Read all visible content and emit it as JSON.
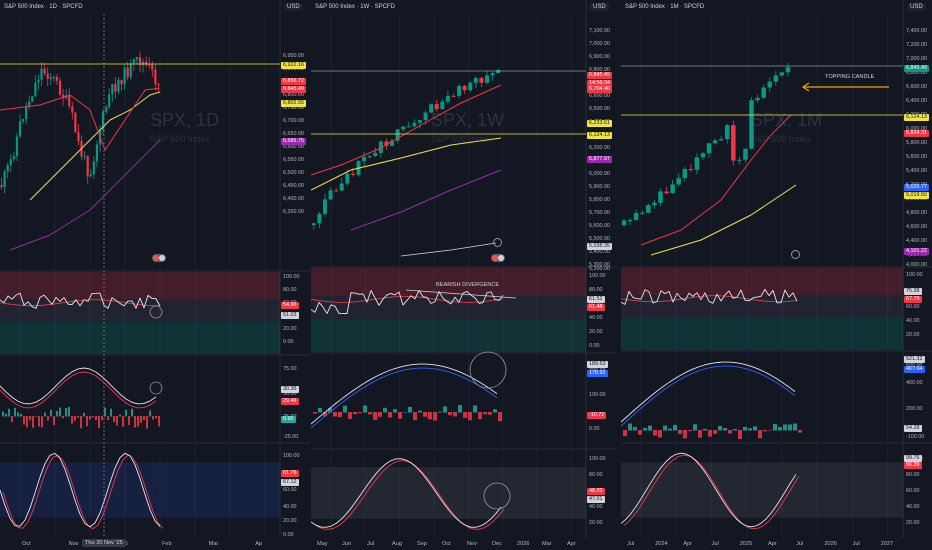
{
  "currency": "USD",
  "panes": [
    {
      "title": "S&P 500 Index · 1D · SPCFD",
      "watermark_symbol": "SPX, 1D",
      "watermark_name": "S&P 500 Index",
      "price_ticks": [
        "6,950.00",
        "6,900.00",
        "6,850.00",
        "6,800.00",
        "6,750.00",
        "6,700.00",
        "6,650.00",
        "6,600.00",
        "6,550.00",
        "6,500.00",
        "6,450.00",
        "6,400.00",
        "6,350.00"
      ],
      "price_labels": [
        {
          "text": "6,922.16",
          "bg": "#f0e442",
          "fg": "#131722"
        },
        {
          "text": "6,856.72",
          "bg": "#f23645",
          "fg": "#ffffff"
        },
        {
          "text": "6,845.49",
          "bg": "#f23645",
          "fg": "#ffffff"
        },
        {
          "text": "6,802.55",
          "bg": "#f0e442",
          "fg": "#131722"
        },
        {
          "text": "6,686.75",
          "bg": "#9c27b0",
          "fg": "#ffffff"
        }
      ],
      "rsi_ticks": [
        "100.00",
        "80.00",
        "60.00",
        "40.00",
        "20.00",
        "0.00"
      ],
      "rsi_labels": [
        {
          "text": "54.96",
          "bg": "#f23645",
          "fg": "#ffffff"
        },
        {
          "text": "51.03",
          "bg": "#d1d4dc",
          "fg": "#131722"
        }
      ],
      "macd_ticks": [
        "75.00",
        "50.00",
        "25.00",
        "0.00",
        "-25.00"
      ],
      "macd_labels": [
        {
          "text": "30.36",
          "bg": "#d1d4dc",
          "fg": "#131722"
        },
        {
          "text": "29.46",
          "bg": "#f23645",
          "fg": "#ffffff"
        },
        {
          "text": "0.90",
          "bg": "#26a69a",
          "fg": "#ffffff"
        }
      ],
      "stoch_ticks": [
        "100.00",
        "80.00",
        "60.00",
        "40.00",
        "20.00",
        "0.00"
      ],
      "stoch_labels": [
        {
          "text": "81.76",
          "bg": "#f23645",
          "fg": "#ffffff"
        },
        {
          "text": "67.12",
          "bg": "#d1d4dc",
          "fg": "#131722"
        }
      ],
      "x_labels": [
        "Oct",
        "Nov",
        "2026",
        "Feb",
        "Mar",
        "Ap"
      ],
      "crosshair_date": "Thu 20 Nov '25"
    },
    {
      "title": "S&P 500 Index · 1W · SPCFD",
      "watermark_symbol": "SPX, 1W",
      "watermark_name": "S&P 500 Index",
      "price_ticks": [
        "7,100.00",
        "7,000.00",
        "6,900.00",
        "6,800.00",
        "6,700.00",
        "6,600.00",
        "6,500.00",
        "6,400.00",
        "6,300.00",
        "6,200.00",
        "6,100.00",
        "6,000.00",
        "5,900.00",
        "5,800.00",
        "5,700.00",
        "5,600.00",
        "5,500.00",
        "5,400.00",
        "5,300.00",
        "5,200.00"
      ],
      "price_labels": [
        {
          "text": "6,845.49",
          "bg": "#f23645",
          "fg": "#ffffff"
        },
        {
          "text": "14:56:34",
          "bg": "#f23645",
          "fg": "#ffffff"
        },
        {
          "text": "6,704.40",
          "bg": "#f23645",
          "fg": "#ffffff"
        },
        {
          "text": "6,233.61",
          "bg": "#f0e442",
          "fg": "#131722"
        },
        {
          "text": "6,124.13",
          "bg": "#f0e442",
          "fg": "#131722"
        },
        {
          "text": "5,877.97",
          "bg": "#9c27b0",
          "fg": "#ffffff"
        },
        {
          "text": "5,038.35",
          "bg": "#d1d4dc",
          "fg": "#131722"
        }
      ],
      "rsi_ticks": [
        "100.00",
        "80.00",
        "60.00",
        "40.00",
        "20.00",
        "0.00"
      ],
      "rsi_labels": [
        {
          "text": "61.52",
          "bg": "#d1d4dc",
          "fg": "#131722"
        },
        {
          "text": "61.48",
          "bg": "#f23645",
          "fg": "#ffffff"
        }
      ],
      "rsi_annotation": "BEARISH DIVERGENCE",
      "macd_ticks": [
        "200.00",
        "100.00",
        "0.00"
      ],
      "macd_labels": [
        {
          "text": "189.63",
          "bg": "#d1d4dc",
          "fg": "#131722"
        },
        {
          "text": "178.92",
          "bg": "#2962ff",
          "fg": "#ffffff"
        },
        {
          "text": "-10.72",
          "bg": "#f23645",
          "fg": "#ffffff"
        }
      ],
      "stoch_ticks": [
        "100.00",
        "80.00",
        "60.00",
        "40.00",
        "20.00"
      ],
      "stoch_labels": [
        {
          "text": "48.20",
          "bg": "#f23645",
          "fg": "#ffffff"
        },
        {
          "text": "47.01",
          "bg": "#d1d4dc",
          "fg": "#131722"
        }
      ],
      "x_labels": [
        "May",
        "Jun",
        "Jul",
        "Aug",
        "Sep",
        "Oct",
        "Nov",
        "Dec",
        "2026",
        "Mar",
        "Apr"
      ]
    },
    {
      "title": "S&P 500 Index · 1M · SPCFD",
      "watermark_symbol": "SPX, 1M",
      "watermark_name": "S&P 500 Index",
      "price_ticks": [
        "7,400.00",
        "7,200.00",
        "7,000.00",
        "6,800.00",
        "6,600.00",
        "6,400.00",
        "6,200.00",
        "6,000.00",
        "5,800.00",
        "5,600.00",
        "5,400.00",
        "5,200.00",
        "5,000.00",
        "4,800.00",
        "4,600.00",
        "4,400.00",
        "4,200.00",
        "4,000.00"
      ],
      "price_labels": [
        {
          "text": "6,845.49",
          "bg": "#089981",
          "fg": "#ffffff"
        },
        {
          "text": "6,124.13",
          "bg": "#f0e442",
          "fg": "#131722"
        },
        {
          "text": "5,834.31",
          "bg": "#f23645",
          "fg": "#ffffff"
        },
        {
          "text": "5,025.77",
          "bg": "#2962ff",
          "fg": "#ffffff"
        },
        {
          "text": "5,019.50",
          "bg": "#f0e442",
          "fg": "#131722"
        },
        {
          "text": "4,101.22",
          "bg": "#9c27b0",
          "fg": "#ffffff"
        }
      ],
      "price_annotation": "TOPPING CANDLE",
      "rsi_ticks": [
        "100.00",
        "80.00",
        "60.00",
        "40.00",
        "20.00"
      ],
      "rsi_labels": [
        {
          "text": "75.38",
          "bg": "#d1d4dc",
          "fg": "#131722"
        },
        {
          "text": "67.79",
          "bg": "#f23645",
          "fg": "#ffffff"
        }
      ],
      "macd_ticks": [
        "600.00",
        "400.00",
        "200.00",
        "-100.00"
      ],
      "macd_labels": [
        {
          "text": "521.32",
          "bg": "#d1d4dc",
          "fg": "#131722"
        },
        {
          "text": "467.04",
          "bg": "#2962ff",
          "fg": "#ffffff"
        },
        {
          "text": "54.28",
          "bg": "#d1d4dc",
          "fg": "#131722"
        }
      ],
      "stoch_ticks": [
        "100.00",
        "80.00",
        "60.00",
        "40.00",
        "20.00"
      ],
      "stoch_labels": [
        {
          "text": "99.76",
          "bg": "#d1d4dc",
          "fg": "#131722"
        },
        {
          "text": "96.39",
          "bg": "#f23645",
          "fg": "#ffffff"
        }
      ],
      "x_labels": [
        "Jul",
        "2024",
        "Apr",
        "Jul",
        "2025",
        "Apr",
        "Jul",
        "2026",
        "Jul",
        "2027"
      ]
    }
  ]
}
